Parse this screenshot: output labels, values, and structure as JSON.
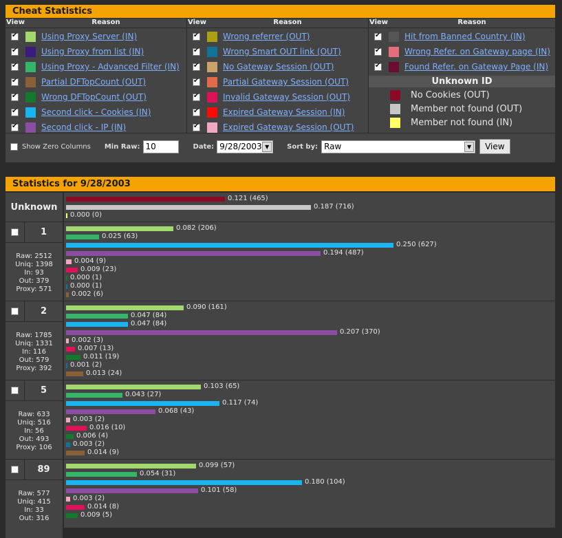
{
  "colors": {
    "header": "#f5a300",
    "link": "#7fb0ff",
    "proxy_server": "#a3d86e",
    "proxy_list": "#3d1a80",
    "proxy_advanced": "#35b56a",
    "partial_dftop": "#8a6038",
    "wrong_dftop": "#127a2a",
    "second_click_cookies": "#1ab4f0",
    "second_click_ip": "#8b4ea2",
    "wrong_referrer": "#aaa012",
    "wrong_smart_out": "#13729a",
    "no_gateway": "#c9a26c",
    "partial_gateway": "#e06a4a",
    "invalid_gateway": "#e0105a",
    "expired_gateway_in": "#ff0808",
    "expired_gateway_out": "#f2a7c2",
    "banned_country": "#555555",
    "wrong_refer_gateway": "#e46e7c",
    "found_refer_gateway": "#6b0c32",
    "no_cookies": "#8c0a24",
    "member_not_found_out": "#c6c6c6",
    "member_not_found_in": "#ffff66"
  },
  "cheat": {
    "title": "Cheat Statistics",
    "view_head": "View",
    "reason_head": "Reason",
    "col1": [
      {
        "label": "Using Proxy Server (IN)",
        "color": "#a3d86e",
        "checked": true
      },
      {
        "label": "Using Proxy from list (IN)",
        "color": "#3d1a80",
        "checked": true
      },
      {
        "label": "Using Proxy - Advanced Filter (IN)",
        "color": "#35b56a",
        "checked": true
      },
      {
        "label": "Partial DFTopCount (OUT)",
        "color": "#8a6038",
        "checked": true
      },
      {
        "label": "Wrong DFTopCount (OUT)",
        "color": "#127a2a",
        "checked": true
      },
      {
        "label": "Second click - Cookies (IN)",
        "color": "#1ab4f0",
        "checked": true
      },
      {
        "label": "Second click - IP (IN)",
        "color": "#8b4ea2",
        "checked": true
      }
    ],
    "col2": [
      {
        "label": "Wrong referrer (OUT)",
        "color": "#aaa012",
        "checked": true
      },
      {
        "label": "Wrong Smart OUT link (OUT)",
        "color": "#13729a",
        "checked": true
      },
      {
        "label": "No Gateway Session (OUT)",
        "color": "#c9a26c",
        "checked": true
      },
      {
        "label": "Partial Gateway Session (OUT)",
        "color": "#e06a4a",
        "checked": true
      },
      {
        "label": "Invalid Gateway Session (OUT)",
        "color": "#e0105a",
        "checked": true
      },
      {
        "label": "Expired Gateway Session (IN)",
        "color": "#ff0808",
        "checked": true
      },
      {
        "label": "Expired Gateway Session (OUT)",
        "color": "#f2a7c2",
        "checked": true
      }
    ],
    "col3": [
      {
        "label": "Hit from Banned Country (IN)",
        "color": "#555555",
        "checked": true
      },
      {
        "label": "Wrong Refer. on Gateway page (IN)",
        "color": "#e46e7c",
        "checked": true
      },
      {
        "label": "Found Refer. on Gateway Page (IN)",
        "color": "#6b0c32",
        "checked": true
      }
    ],
    "unknown_title": "Unknown ID",
    "unknown_items": [
      {
        "label": "No Cookies (OUT)",
        "color": "#8c0a24"
      },
      {
        "label": "Member not found (OUT)",
        "color": "#c6c6c6"
      },
      {
        "label": "Member not found (IN)",
        "color": "#ffff66"
      }
    ]
  },
  "controls": {
    "show_zero": "Show Zero Columns",
    "min_raw_label": "Min Raw:",
    "min_raw_value": "10",
    "date_label": "Date:",
    "date_value": "9/28/2003",
    "sort_label": "Sort by:",
    "sort_value": "Raw",
    "view_button": "View"
  },
  "stats": {
    "title": "Statistics for 9/28/2003",
    "unknown_label": "Unknown",
    "unknown_bars": [
      {
        "color": "#8c0a24",
        "value": 0.121,
        "label": "0.121 (465)"
      },
      {
        "color": "#c6c6c6",
        "value": 0.187,
        "label": "0.187 (716)"
      },
      {
        "color": "#ffff66",
        "value": 0.0,
        "label": "0.000 (0)"
      }
    ],
    "sites": [
      {
        "id": "1",
        "raw": "Raw: 2512",
        "uniq": "Uniq: 1398",
        "in": "In: 93",
        "out": "Out: 379",
        "proxy": "Proxy: 571",
        "bars": [
          {
            "color": "#a3d86e",
            "value": 0.082,
            "label": "0.082 (206)"
          },
          {
            "color": "#35b56a",
            "value": 0.025,
            "label": "0.025 (63)"
          },
          {
            "color": "#1ab4f0",
            "value": 0.25,
            "label": "0.250 (627)"
          },
          {
            "color": "#8b4ea2",
            "value": 0.194,
            "label": "0.194 (487)"
          },
          {
            "color": "#f2a7c2",
            "value": 0.004,
            "label": "0.004 (9)"
          },
          {
            "color": "#e0105a",
            "value": 0.009,
            "label": "0.009 (23)"
          },
          {
            "color": "#127a2a",
            "value": 0.0,
            "label": "0.000 (1)"
          },
          {
            "color": "#13729a",
            "value": 0.0,
            "label": "0.000 (1)"
          },
          {
            "color": "#8a6038",
            "value": 0.002,
            "label": "0.002 (6)"
          }
        ]
      },
      {
        "id": "2",
        "raw": "Raw: 1785",
        "uniq": "Uniq: 1331",
        "in": "In: 116",
        "out": "Out: 579",
        "proxy": "Proxy: 392",
        "bars": [
          {
            "color": "#a3d86e",
            "value": 0.09,
            "label": "0.090 (161)"
          },
          {
            "color": "#35b56a",
            "value": 0.047,
            "label": "0.047 (84)"
          },
          {
            "color": "#1ab4f0",
            "value": 0.047,
            "label": "0.047 (84)"
          },
          {
            "color": "#8b4ea2",
            "value": 0.207,
            "label": "0.207 (370)"
          },
          {
            "color": "#f2a7c2",
            "value": 0.002,
            "label": "0.002 (3)"
          },
          {
            "color": "#e0105a",
            "value": 0.007,
            "label": "0.007 (13)"
          },
          {
            "color": "#127a2a",
            "value": 0.011,
            "label": "0.011 (19)"
          },
          {
            "color": "#13729a",
            "value": 0.001,
            "label": "0.001 (2)"
          },
          {
            "color": "#8a6038",
            "value": 0.013,
            "label": "0.013 (24)"
          }
        ]
      },
      {
        "id": "5",
        "raw": "Raw: 633",
        "uniq": "Uniq: 516",
        "in": "In: 56",
        "out": "Out: 493",
        "proxy": "Proxy: 106",
        "bars": [
          {
            "color": "#a3d86e",
            "value": 0.103,
            "label": "0.103 (65)"
          },
          {
            "color": "#35b56a",
            "value": 0.043,
            "label": "0.043 (27)"
          },
          {
            "color": "#1ab4f0",
            "value": 0.117,
            "label": "0.117 (74)"
          },
          {
            "color": "#8b4ea2",
            "value": 0.068,
            "label": "0.068 (43)"
          },
          {
            "color": "#f2a7c2",
            "value": 0.003,
            "label": "0.003 (2)"
          },
          {
            "color": "#e0105a",
            "value": 0.016,
            "label": "0.016 (10)"
          },
          {
            "color": "#127a2a",
            "value": 0.006,
            "label": "0.006 (4)"
          },
          {
            "color": "#13729a",
            "value": 0.003,
            "label": "0.003 (2)"
          },
          {
            "color": "#8a6038",
            "value": 0.014,
            "label": "0.014 (9)"
          }
        ]
      },
      {
        "id": "89",
        "raw": "Raw: 577",
        "uniq": "Uniq: 415",
        "in": "In: 33",
        "out": "Out: 316",
        "proxy": "",
        "bars": [
          {
            "color": "#a3d86e",
            "value": 0.099,
            "label": "0.099 (57)"
          },
          {
            "color": "#35b56a",
            "value": 0.054,
            "label": "0.054 (31)"
          },
          {
            "color": "#1ab4f0",
            "value": 0.18,
            "label": "0.180 (104)"
          },
          {
            "color": "#8b4ea2",
            "value": 0.101,
            "label": "0.101 (58)"
          },
          {
            "color": "#f2a7c2",
            "value": 0.003,
            "label": "0.003 (2)"
          },
          {
            "color": "#e0105a",
            "value": 0.014,
            "label": "0.014 (8)"
          },
          {
            "color": "#127a2a",
            "value": 0.009,
            "label": "0.009 (5)"
          }
        ]
      }
    ]
  }
}
